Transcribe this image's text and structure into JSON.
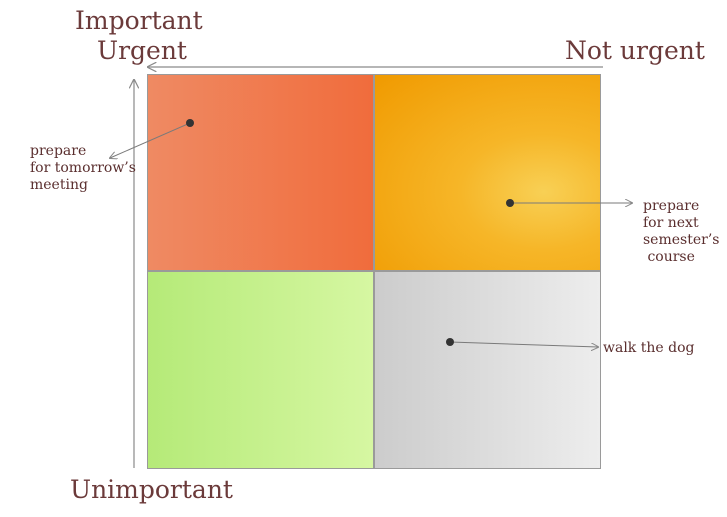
{
  "axes": {
    "top_left_line1": "Important",
    "top_left_line2": "Urgent",
    "top_right": "Not urgent",
    "bottom_left": "Unimportant"
  },
  "quadrants": [
    {
      "name": "important-urgent",
      "color_start": "#ef8a63",
      "color_end": "#f06c3c"
    },
    {
      "name": "important-not-urgent",
      "color_start": "#f8d055",
      "color_end": "#f09a00"
    },
    {
      "name": "unimportant-urgent",
      "color_start": "#b5ea78",
      "color_end": "#d6f7a2"
    },
    {
      "name": "unimportant-not-urgent",
      "color_start": "#cccccc",
      "color_end": "#ededed"
    }
  ],
  "tasks": [
    {
      "quadrant": "important-urgent",
      "lines": [
        "prepare",
        "for tomorrow’s",
        "meeting"
      ]
    },
    {
      "quadrant": "important-not-urgent",
      "lines": [
        "prepare",
        "for next",
        "semester’s",
        " course"
      ]
    },
    {
      "quadrant": "unimportant-not-urgent",
      "lines": [
        "walk the dog"
      ]
    }
  ],
  "colors": {
    "text": "#6b3a3a",
    "axis": "#8a8a8a",
    "dot": "#333333"
  }
}
